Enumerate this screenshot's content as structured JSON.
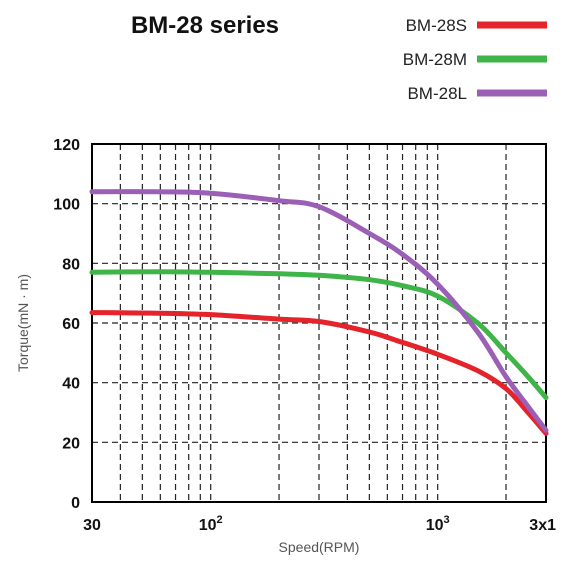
{
  "chart_data": {
    "type": "line",
    "title": "BM-28 series",
    "xlabel": "Speed(RPM)",
    "ylabel": "Torque(mN · m)",
    "x_scale": "log",
    "xlim": [
      30,
      3000
    ],
    "ylim": [
      0,
      120
    ],
    "grid": true,
    "legend_position": "top-right",
    "x_tick_labels": [
      {
        "value": 30,
        "label": "30"
      },
      {
        "value": 100,
        "label": "10",
        "sup": "2"
      },
      {
        "value": 1000,
        "label": "10",
        "sup": "3"
      },
      {
        "value": 3000,
        "label": "3x1"
      }
    ],
    "x_gridlines": [
      40,
      50,
      60,
      70,
      80,
      90,
      100,
      200,
      300,
      400,
      500,
      600,
      700,
      800,
      900,
      1000,
      2000
    ],
    "y_ticks": [
      0,
      20,
      40,
      60,
      80,
      100,
      120
    ],
    "series": [
      {
        "name": "BM-28S",
        "color": "#e4232b",
        "x": [
          30,
          60,
          100,
          200,
          300,
          500,
          700,
          1000,
          1500,
          2000,
          2500,
          3000
        ],
        "y": [
          63.5,
          63.3,
          62.8,
          61.3,
          60.5,
          57,
          53.5,
          49.5,
          44,
          38,
          30,
          23
        ]
      },
      {
        "name": "BM-28M",
        "color": "#3fb449",
        "x": [
          30,
          60,
          100,
          200,
          300,
          500,
          700,
          1000,
          1500,
          2000,
          2500,
          3000
        ],
        "y": [
          77,
          77.2,
          77,
          76.5,
          76,
          74.5,
          72.5,
          69,
          60,
          50,
          42,
          35
        ]
      },
      {
        "name": "BM-28L",
        "color": "#9b5fb5",
        "x": [
          30,
          60,
          100,
          200,
          300,
          500,
          700,
          1000,
          1500,
          2000,
          2500,
          3000
        ],
        "y": [
          104,
          104,
          103.5,
          101,
          99,
          90,
          83,
          73,
          57,
          42,
          32,
          24
        ]
      }
    ]
  }
}
